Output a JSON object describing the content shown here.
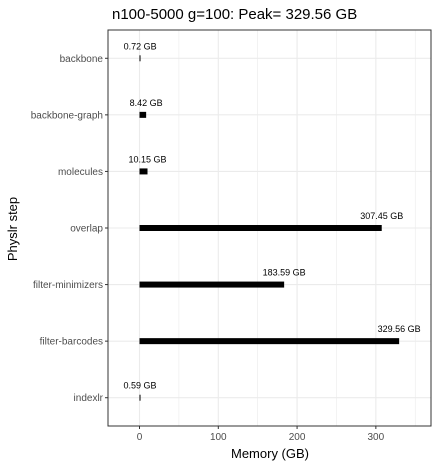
{
  "chart_data": {
    "type": "bar",
    "orientation": "horizontal",
    "title": "n100-5000 g=100: Peak=  329.56  GB",
    "xlabel": "Memory (GB)",
    "ylabel": "Physlr step",
    "categories": [
      "backbone",
      "backbone-graph",
      "molecules",
      "overlap",
      "filter-minimizers",
      "filter-barcodes",
      "indexlr"
    ],
    "values": [
      0.72,
      8.42,
      10.15,
      307.45,
      183.59,
      329.56,
      0.59
    ],
    "value_labels": [
      "0.72 GB",
      "8.42 GB",
      "10.15 GB",
      "307.45 GB",
      "183.59 GB",
      "329.56 GB",
      "0.59 GB"
    ],
    "xlim": [
      -40,
      370
    ],
    "xticks": [
      0,
      100,
      200,
      300
    ],
    "xtick_labels": [
      "0",
      "100",
      "200",
      "300"
    ],
    "grid": true,
    "bar_color": "#000000",
    "grid_color": "#ebebeb",
    "panel_border_color": "#333333"
  }
}
